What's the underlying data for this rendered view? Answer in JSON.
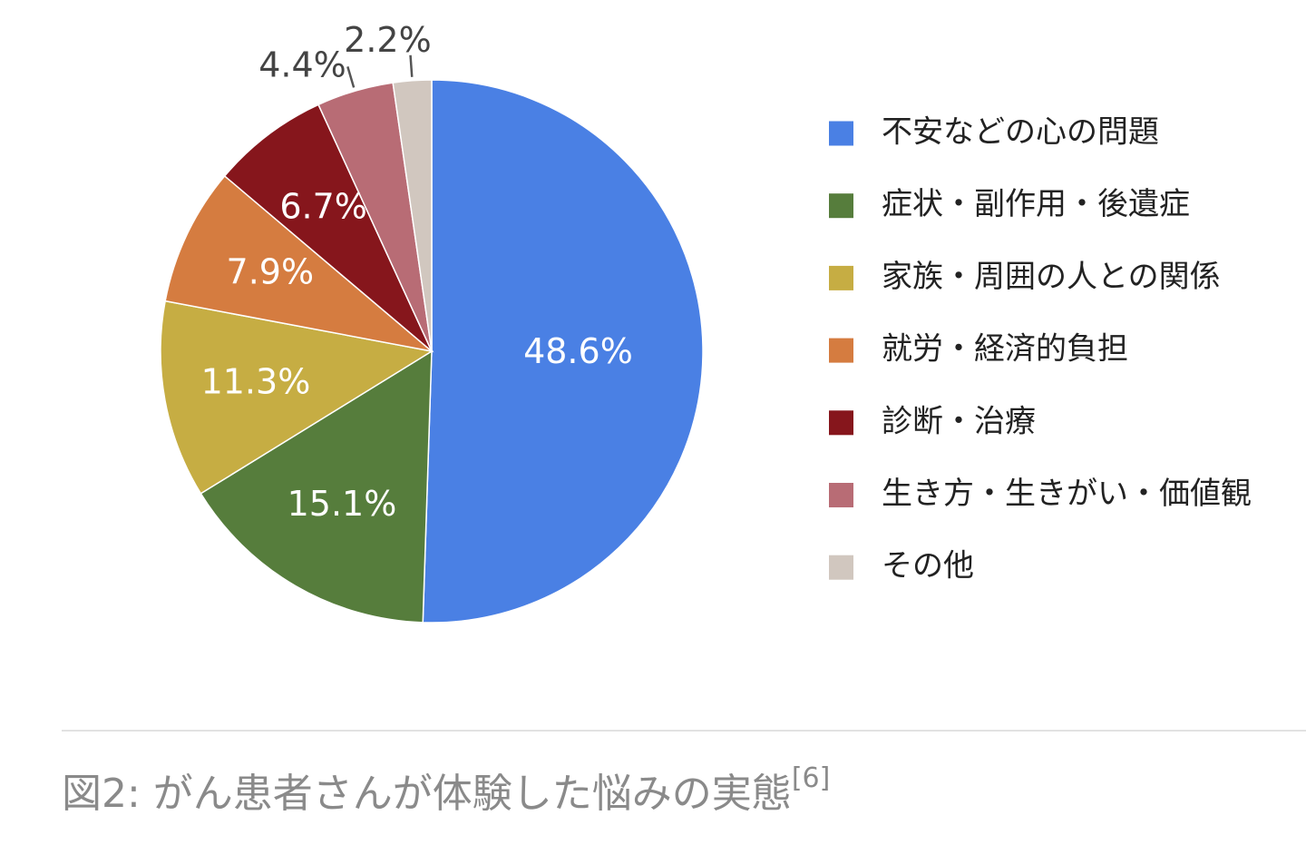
{
  "chart_data": {
    "type": "pie",
    "start": "12 o'clock, clockwise",
    "slices": [
      {
        "name": "不安などの心の問題",
        "value": 48.6,
        "label": "48.6%",
        "color": "#4a80e4"
      },
      {
        "name": "症状・副作用・後遺症",
        "value": 15.1,
        "label": "15.1%",
        "color": "#567d3c"
      },
      {
        "name": "家族・周囲の人との関係",
        "value": 11.3,
        "label": "11.3%",
        "color": "#c6ad43"
      },
      {
        "name": "就労・経済的負担",
        "value": 7.9,
        "label": "7.9%",
        "color": "#d57c40"
      },
      {
        "name": "診断・治療",
        "value": 6.7,
        "label": "6.7%",
        "color": "#86161c"
      },
      {
        "name": "生き方・生きがい・価値観",
        "value": 4.4,
        "label": "4.4%",
        "color": "#b86c75"
      },
      {
        "name": "その他",
        "value": 2.2,
        "label": "2.2%",
        "color": "#d1c7bf"
      }
    ],
    "legend_position": "right"
  },
  "caption": {
    "text": "図2: がん患者さんが体験した悩みの実態",
    "ref": "[6]"
  }
}
